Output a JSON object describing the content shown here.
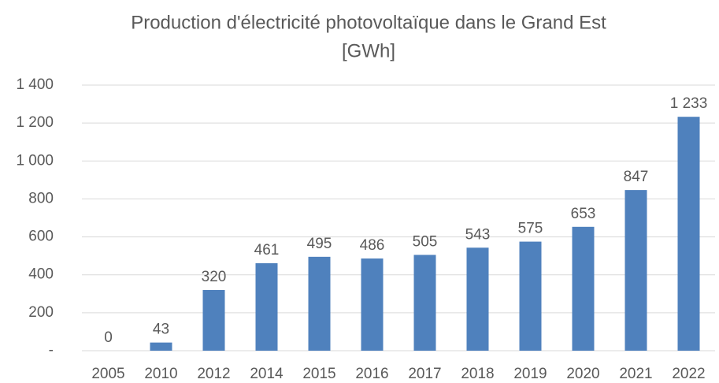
{
  "chart_data": {
    "type": "bar",
    "title": [
      "Production d'électricité photovoltaïque dans le Grand Est",
      "[GWh]"
    ],
    "categories": [
      "2005",
      "2010",
      "2012",
      "2014",
      "2015",
      "2016",
      "2017",
      "2018",
      "2019",
      "2020",
      "2021",
      "2022"
    ],
    "values": [
      0,
      43,
      320,
      461,
      495,
      486,
      505,
      543,
      575,
      653,
      847,
      1233
    ],
    "value_labels": [
      "0",
      "43",
      "320",
      "461",
      "495",
      "486",
      "505",
      "543",
      "575",
      "653",
      "847",
      "1 233"
    ],
    "color": "#4f81bd",
    "ylim": [
      0,
      1400
    ],
    "yticks": [
      {
        "value": 0,
        "label": "-"
      },
      200,
      400,
      600,
      800,
      {
        "value": 1000,
        "label": "1 000"
      },
      {
        "value": 1200,
        "label": "1 200"
      },
      {
        "value": 1400,
        "label": "1 400"
      }
    ],
    "grid": true
  }
}
